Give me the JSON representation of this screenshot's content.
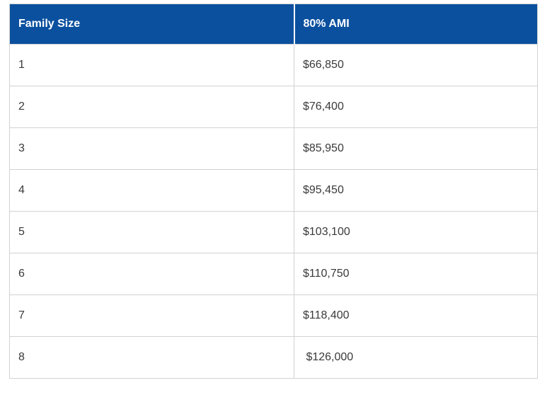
{
  "colors": {
    "header_bg": "#0b509e",
    "header_text": "#ffffff",
    "border": "#d2d2d2",
    "body_text": "#3a3a3a"
  },
  "table": {
    "columns": [
      {
        "label": "Family Size"
      },
      {
        "label": "80% AMI"
      }
    ],
    "rows": [
      {
        "family_size": "1",
        "ami": "$66,850"
      },
      {
        "family_size": "2",
        "ami": "$76,400"
      },
      {
        "family_size": "3",
        "ami": "$85,950"
      },
      {
        "family_size": "4",
        "ami": "$95,450"
      },
      {
        "family_size": "5",
        "ami": "$103,100"
      },
      {
        "family_size": "6",
        "ami": "$110,750"
      },
      {
        "family_size": "7",
        "ami": "$118,400"
      },
      {
        "family_size": "8",
        "ami": " $126,000"
      }
    ]
  },
  "chart_data": {
    "type": "table",
    "title": "",
    "columns": [
      "Family Size",
      "80% AMI"
    ],
    "categories": [
      "1",
      "2",
      "3",
      "4",
      "5",
      "6",
      "7",
      "8"
    ],
    "values": [
      66850,
      76400,
      85950,
      95450,
      103100,
      110750,
      118400,
      126000
    ]
  }
}
